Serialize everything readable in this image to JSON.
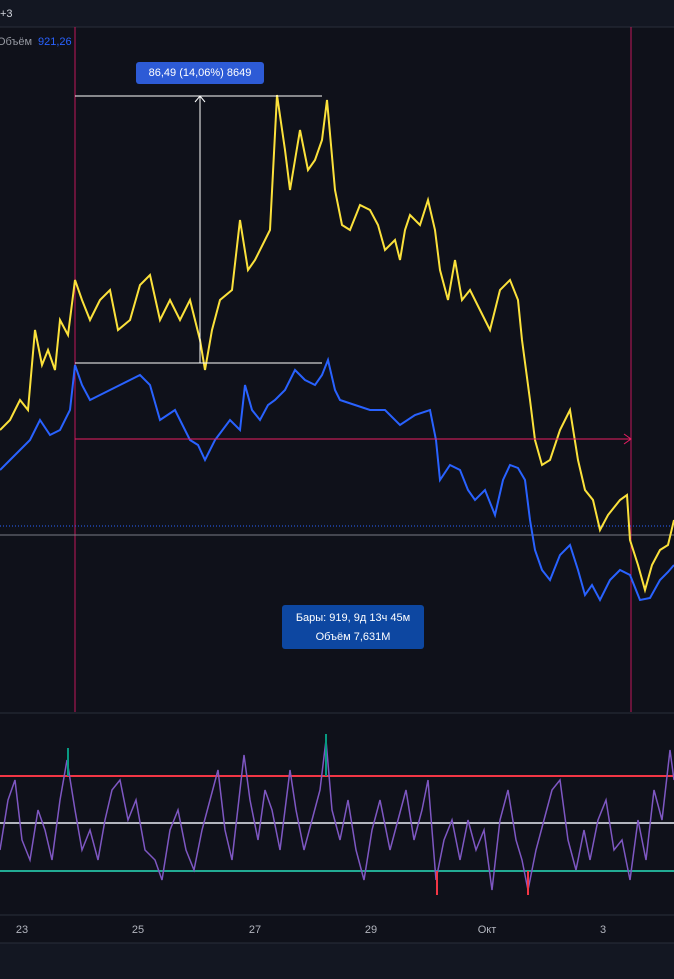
{
  "toolbar": {
    "badge": "+3",
    "volume_label": "Объём",
    "volume_value": "921,26"
  },
  "measure": {
    "label": "86,49 (14,06%) 8649"
  },
  "range_info": {
    "bars": "Бары: 919, 9д 13ч 45м",
    "volume": "Объём 7,631M"
  },
  "time_axis": {
    "labels": [
      "23",
      "25",
      "27",
      "29",
      "Окт",
      "3"
    ]
  }
}
